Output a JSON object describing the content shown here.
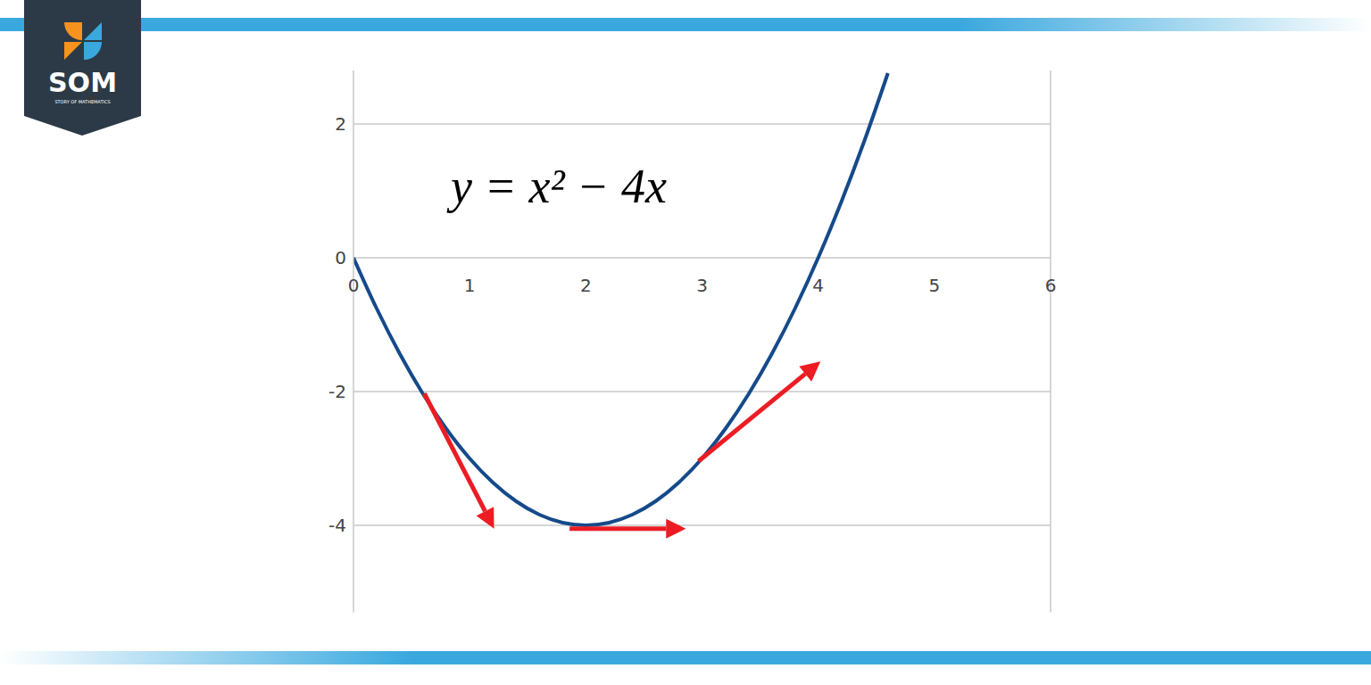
{
  "chart_data": {
    "type": "line",
    "title": "y = x² − 4x",
    "x": [
      0,
      0.2,
      0.4,
      0.6,
      0.8,
      1,
      1.2,
      1.4,
      1.6,
      1.8,
      2,
      2.2,
      2.4,
      2.6,
      2.8,
      3,
      3.2,
      3.4,
      3.6,
      3.8,
      4,
      4.2,
      4.4,
      4.6
    ],
    "values": [
      0,
      -0.76,
      -1.44,
      -2.04,
      -2.56,
      -3,
      -3.36,
      -3.64,
      -3.84,
      -3.96,
      -4,
      -3.96,
      -3.84,
      -3.64,
      -3.36,
      -3,
      -2.56,
      -2.04,
      -1.44,
      -0.76,
      0,
      0.84,
      1.76,
      2.76
    ],
    "color": "#154a8a",
    "xlim": [
      0,
      6
    ],
    "xticks": [
      0,
      1,
      2,
      3,
      4,
      5,
      6
    ],
    "ylim": [
      -5.3,
      2.8
    ],
    "yticks": [
      -4,
      -2,
      0,
      2
    ],
    "grid": true,
    "arrows": [
      {
        "x0": 0.61,
        "y0": -2.03,
        "x1": 1.21,
        "y1": -4.05,
        "color": "#ec1c24"
      },
      {
        "x0": 1.86,
        "y0": -4.05,
        "x1": 2.86,
        "y1": -4.05,
        "color": "#ec1c24"
      },
      {
        "x0": 2.97,
        "y0": -3.04,
        "x1": 4.02,
        "y1": -1.55,
        "color": "#ec1c24"
      }
    ]
  },
  "logo": {
    "text": "SOM",
    "caption": "STORY OF MATHEMATICS"
  }
}
